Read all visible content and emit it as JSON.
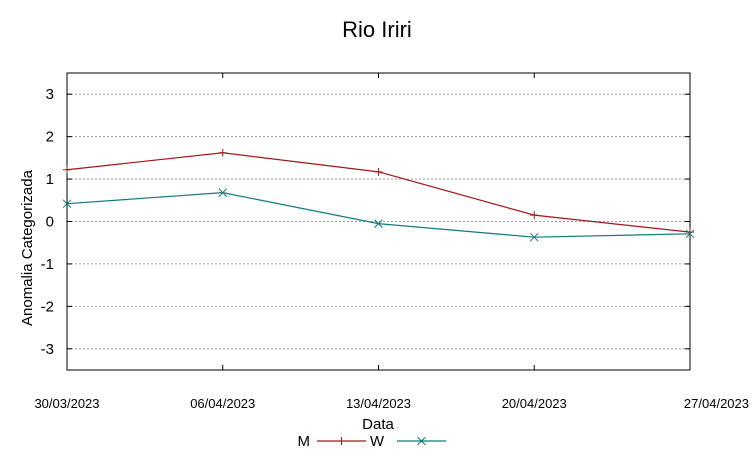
{
  "chart_data": {
    "type": "line",
    "title": "Rio Iriri",
    "xlabel": "Data",
    "ylabel": "Anomalia Categorizada",
    "categories": [
      "30/03/2023",
      "06/04/2023",
      "13/04/2023",
      "20/04/2023",
      "27/04/2023"
    ],
    "ylim": [
      -3.5,
      3.5
    ],
    "yticks": [
      -3,
      -2,
      -1,
      0,
      1,
      2,
      3
    ],
    "grid": true,
    "legend_position": "bottom-center",
    "series": [
      {
        "name": "M",
        "color": "#a01818",
        "marker": "plus",
        "values": [
          1.22,
          1.62,
          1.17,
          0.15,
          -0.25
        ]
      },
      {
        "name": "W",
        "color": "#12787a",
        "marker": "x",
        "values": [
          0.42,
          0.68,
          -0.05,
          -0.37,
          -0.29
        ]
      }
    ]
  }
}
